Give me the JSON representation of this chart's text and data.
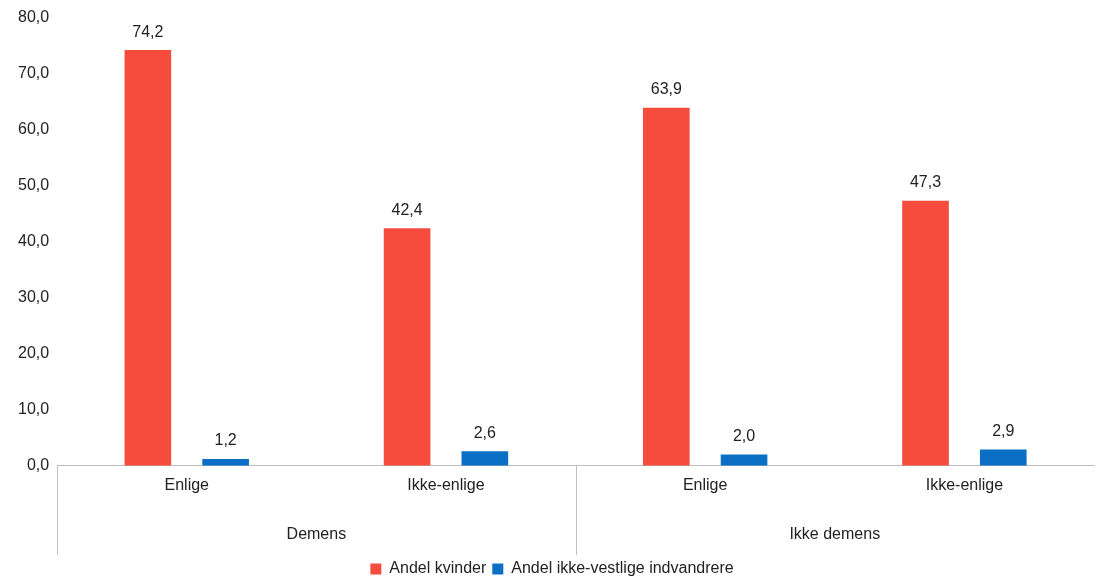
{
  "chart_data": {
    "type": "bar",
    "categories": [
      "Enlige",
      "Ikke-enlige",
      "Enlige",
      "Ikke-enlige"
    ],
    "series": [
      {
        "name": "Andel kvinder",
        "color": "#f54c3d",
        "values": [
          74.2,
          42.4,
          63.9,
          47.3
        ],
        "value_labels": [
          "74,2",
          "42,4",
          "63,9",
          "47,3"
        ]
      },
      {
        "name": "Andel ikke-vestlige indvandrere",
        "color": "#0b6fc6",
        "values": [
          1.2,
          2.6,
          2.0,
          2.9
        ],
        "value_labels": [
          "1,2",
          "2,6",
          "2,0",
          "2,9"
        ]
      }
    ],
    "annotations": [
      "Demens",
      "Ikke demens"
    ],
    "ylim": [
      0,
      80
    ],
    "yticks": [
      {
        "value": 0,
        "label": "0,0"
      },
      {
        "value": 10,
        "label": "10,0"
      },
      {
        "value": 20,
        "label": "20,0"
      },
      {
        "value": 30,
        "label": "30,0"
      },
      {
        "value": 40,
        "label": "40,0"
      },
      {
        "value": 50,
        "label": "50,0"
      },
      {
        "value": 60,
        "label": "60,0"
      },
      {
        "value": 70,
        "label": "70,0"
      },
      {
        "value": 80,
        "label": "80,0"
      }
    ],
    "grid": false,
    "legend": "bottom"
  }
}
